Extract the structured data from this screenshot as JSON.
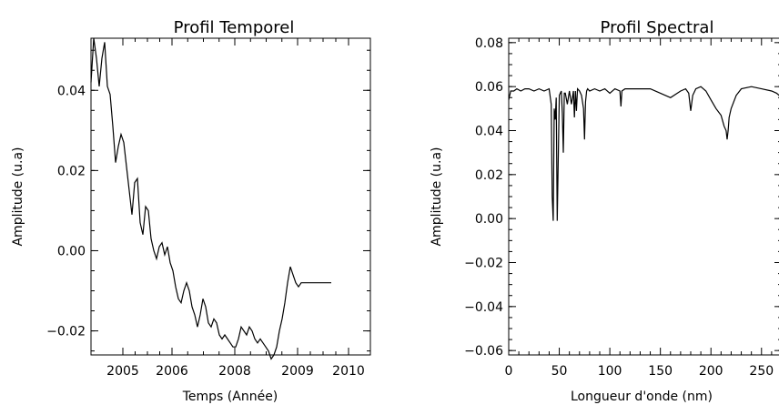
{
  "chart_data": [
    {
      "type": "line",
      "title": "Profil Temporel",
      "xlabel": "Temps (Année)",
      "ylabel": "Amplitude (u.a)",
      "x_tick_labels": [
        "2005",
        "2006",
        "2008",
        "2009",
        "2010"
      ],
      "y_ticks": [
        -0.02,
        0.0,
        0.02,
        0.04
      ],
      "y_tick_labels": [
        "−0.02",
        "0.00",
        "0.02",
        "0.04"
      ],
      "xlim": [
        0,
        307
      ],
      "ylim": [
        -0.026,
        0.053
      ],
      "grid": false,
      "series": [
        {
          "x": [
            0,
            3,
            6,
            9,
            12,
            15,
            18,
            21,
            24,
            27,
            30,
            33,
            36,
            39,
            42,
            45,
            48,
            51,
            54,
            57,
            60,
            63,
            66,
            69,
            72,
            75,
            78,
            81,
            84,
            87,
            90,
            93,
            96,
            99,
            102,
            105,
            108,
            111,
            114,
            117,
            120,
            123,
            126,
            129,
            132,
            135,
            138,
            141,
            144,
            147,
            150,
            153,
            156,
            159,
            162,
            165,
            168,
            171,
            174,
            177,
            180,
            183,
            186,
            189,
            192,
            195,
            198,
            201,
            204,
            207,
            210,
            213,
            216,
            219,
            222,
            225,
            228,
            231,
            234,
            237,
            240,
            243,
            246,
            249,
            252,
            255,
            258,
            261,
            264
          ],
          "y": [
            0.042,
            0.053,
            0.048,
            0.041,
            0.048,
            0.052,
            0.041,
            0.039,
            0.031,
            0.022,
            0.026,
            0.029,
            0.027,
            0.021,
            0.015,
            0.009,
            0.017,
            0.018,
            0.007,
            0.004,
            0.011,
            0.01,
            0.003,
            0.0,
            -0.002,
            0.001,
            0.002,
            -0.001,
            0.001,
            -0.003,
            -0.005,
            -0.009,
            -0.012,
            -0.013,
            -0.01,
            -0.008,
            -0.01,
            -0.014,
            -0.016,
            -0.019,
            -0.016,
            -0.012,
            -0.014,
            -0.018,
            -0.019,
            -0.017,
            -0.018,
            -0.021,
            -0.022,
            -0.021,
            -0.022,
            -0.023,
            -0.024,
            -0.024,
            -0.022,
            -0.019,
            -0.02,
            -0.021,
            -0.019,
            -0.02,
            -0.022,
            -0.023,
            -0.022,
            -0.023,
            -0.024,
            -0.025,
            -0.027,
            -0.026,
            -0.024,
            -0.02,
            -0.017,
            -0.013,
            -0.008,
            -0.004,
            -0.006,
            -0.008,
            -0.009,
            -0.008,
            -0.008,
            -0.008,
            -0.008,
            -0.008,
            -0.008,
            -0.008,
            -0.008,
            -0.008,
            -0.008,
            -0.008,
            -0.008
          ]
        }
      ]
    },
    {
      "type": "line",
      "title": "Profil Spectral",
      "xlabel": "Longueur d'onde (nm)",
      "ylabel": "Amplitude (u.a)",
      "x_ticks": [
        0,
        50,
        100,
        150,
        200,
        250
      ],
      "y_ticks": [
        -0.06,
        -0.04,
        -0.02,
        0.0,
        0.02,
        0.04,
        0.06,
        0.08
      ],
      "y_tick_labels": [
        "−0.06",
        "−0.04",
        "−0.02",
        "0.00",
        "0.02",
        "0.04",
        "0.06",
        "0.08"
      ],
      "xlim": [
        0,
        270
      ],
      "ylim": [
        -0.062,
        0.082
      ],
      "grid": false,
      "series": [
        {
          "x": [
            0,
            2,
            5,
            8,
            12,
            16,
            20,
            25,
            30,
            35,
            40,
            42,
            43,
            44,
            45,
            46,
            47,
            48,
            50,
            52,
            53,
            54,
            55,
            56,
            58,
            60,
            62,
            64,
            65,
            66,
            67,
            68,
            70,
            72,
            74,
            75,
            76,
            77,
            78,
            80,
            85,
            90,
            95,
            100,
            105,
            110,
            111,
            112,
            115,
            120,
            130,
            140,
            150,
            160,
            170,
            175,
            178,
            180,
            182,
            185,
            190,
            195,
            200,
            205,
            210,
            213,
            215,
            216,
            217,
            218,
            220,
            225,
            230,
            240,
            250,
            260,
            265,
            270
          ],
          "y": [
            0.054,
            0.058,
            0.058,
            0.059,
            0.058,
            0.059,
            0.059,
            0.058,
            0.059,
            0.058,
            0.059,
            0.052,
            0.01,
            -0.001,
            0.05,
            0.045,
            0.055,
            -0.001,
            0.056,
            0.058,
            0.048,
            0.03,
            0.057,
            0.057,
            0.052,
            0.058,
            0.052,
            0.058,
            0.046,
            0.058,
            0.049,
            0.059,
            0.058,
            0.056,
            0.05,
            0.036,
            0.053,
            0.058,
            0.059,
            0.058,
            0.059,
            0.058,
            0.059,
            0.057,
            0.059,
            0.058,
            0.051,
            0.058,
            0.059,
            0.059,
            0.059,
            0.059,
            0.057,
            0.055,
            0.058,
            0.059,
            0.057,
            0.049,
            0.056,
            0.059,
            0.06,
            0.058,
            0.054,
            0.05,
            0.047,
            0.042,
            0.04,
            0.036,
            0.04,
            0.046,
            0.05,
            0.056,
            0.059,
            0.06,
            0.059,
            0.058,
            0.057,
            0.055
          ]
        }
      ]
    }
  ]
}
